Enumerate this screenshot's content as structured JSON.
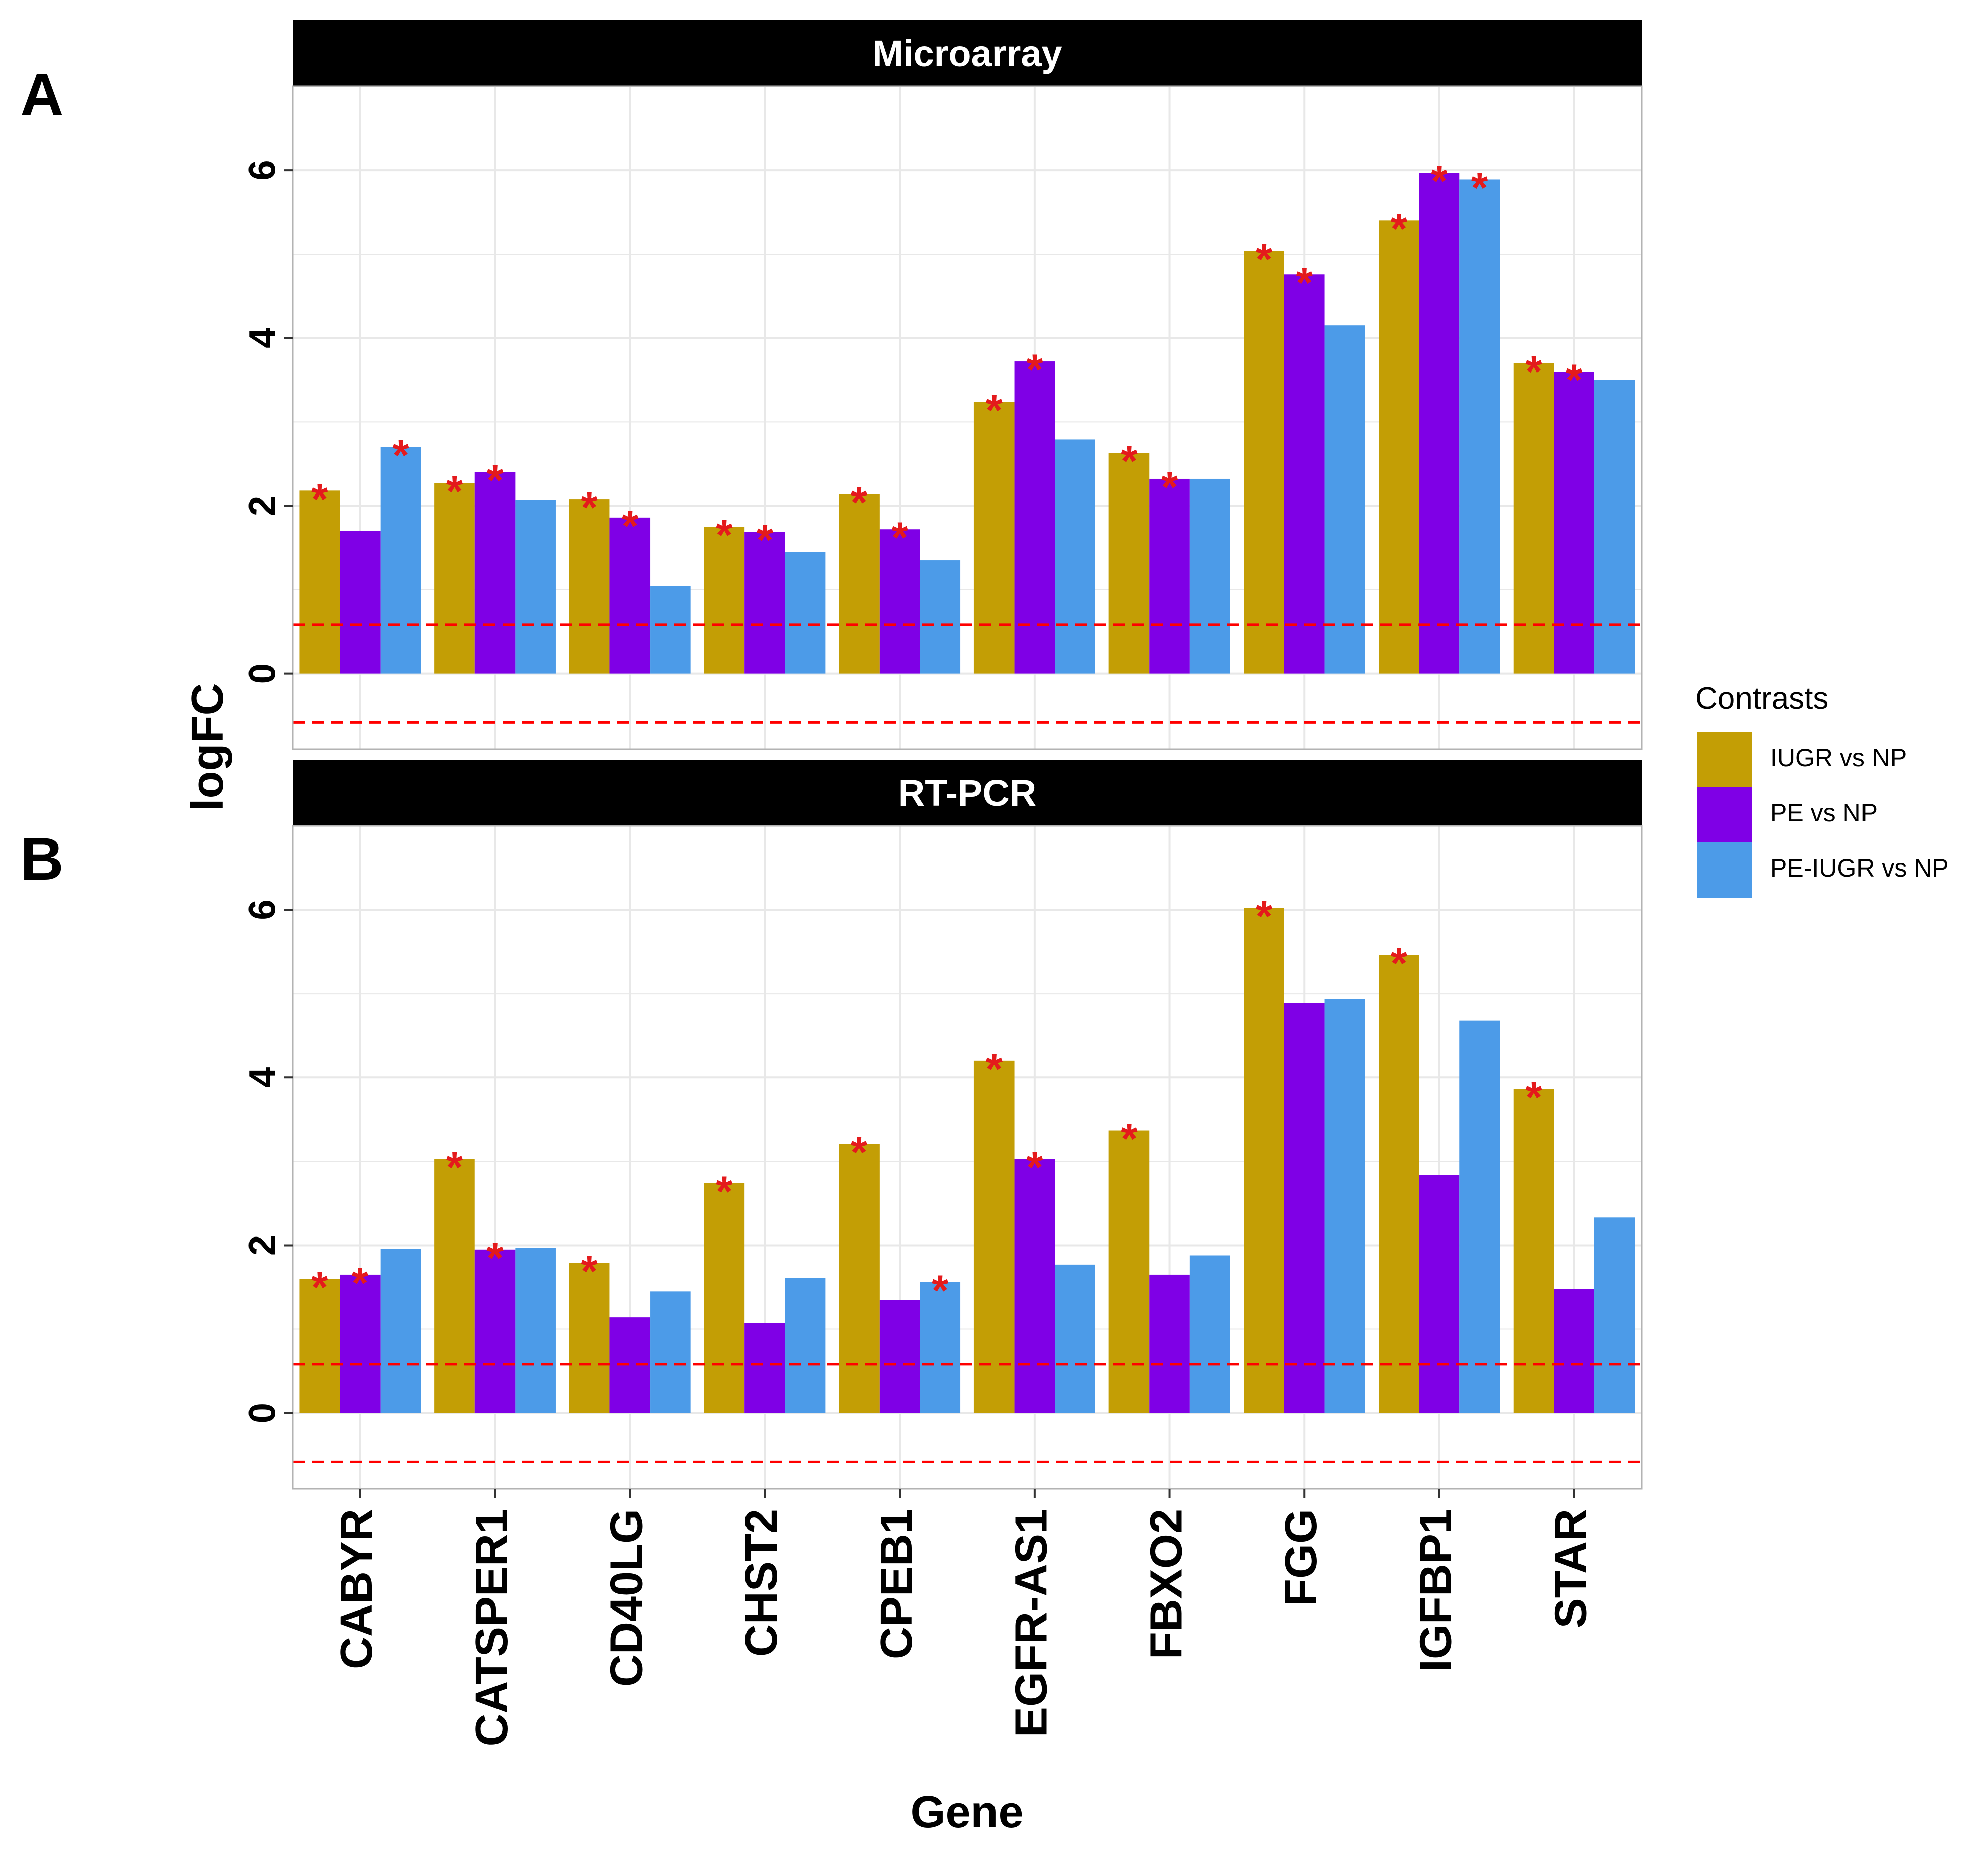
{
  "chart_data": {
    "type": "bar",
    "xlabel": "Gene",
    "ylabel": "logFC",
    "categories": [
      "CABYR",
      "CATSPER1",
      "CD40LG",
      "CHST2",
      "CPEB1",
      "EGFR-AS1",
      "FBXO2",
      "FGG",
      "IGFBP1",
      "STAR"
    ],
    "ylim": [
      -0.9,
      7.0
    ],
    "y_ticks": [
      0,
      2,
      4,
      6
    ],
    "threshold_lines": [
      0.585,
      -0.585
    ],
    "legend": {
      "title": "Contrasts",
      "position": "right"
    },
    "series_meta": [
      {
        "name": "IUGR vs NP",
        "color": "#C39E05"
      },
      {
        "name": "PE vs NP",
        "color": "#7F00E6"
      },
      {
        "name": "PE-IUGR vs NP",
        "color": "#4C9BE8"
      }
    ],
    "significance_marker": "*",
    "panels": [
      {
        "label": "A",
        "strip": "Microarray",
        "series": [
          {
            "name": "IUGR vs NP",
            "values": [
              2.18,
              2.27,
              2.08,
              1.75,
              2.14,
              3.24,
              2.63,
              5.04,
              5.4,
              3.7
            ],
            "significant": [
              true,
              true,
              true,
              true,
              true,
              true,
              true,
              true,
              true,
              true
            ]
          },
          {
            "name": "PE vs NP",
            "values": [
              1.7,
              2.4,
              1.86,
              1.69,
              1.72,
              3.72,
              2.32,
              4.76,
              5.97,
              3.6
            ],
            "significant": [
              false,
              true,
              true,
              true,
              true,
              true,
              true,
              true,
              true,
              true
            ]
          },
          {
            "name": "PE-IUGR vs NP",
            "values": [
              2.7,
              2.07,
              1.04,
              1.45,
              1.35,
              2.79,
              2.32,
              4.15,
              5.89,
              3.5
            ],
            "significant": [
              true,
              false,
              false,
              false,
              false,
              false,
              false,
              false,
              true,
              false
            ]
          }
        ]
      },
      {
        "label": "B",
        "strip": "RT-PCR",
        "series": [
          {
            "name": "IUGR vs NP",
            "values": [
              1.6,
              3.03,
              1.79,
              2.74,
              3.21,
              4.2,
              3.37,
              6.02,
              5.46,
              3.86
            ],
            "significant": [
              true,
              true,
              true,
              true,
              true,
              true,
              true,
              true,
              true,
              true
            ]
          },
          {
            "name": "PE vs NP",
            "values": [
              1.65,
              1.95,
              1.14,
              1.07,
              1.35,
              3.03,
              1.65,
              4.89,
              2.84,
              1.48
            ],
            "significant": [
              true,
              true,
              false,
              false,
              false,
              true,
              false,
              false,
              false,
              false
            ]
          },
          {
            "name": "PE-IUGR vs NP",
            "values": [
              1.96,
              1.97,
              1.45,
              1.61,
              1.56,
              1.77,
              1.88,
              4.94,
              4.68,
              2.33
            ],
            "significant": [
              false,
              false,
              false,
              false,
              true,
              false,
              false,
              false,
              false,
              false
            ]
          }
        ]
      }
    ]
  }
}
